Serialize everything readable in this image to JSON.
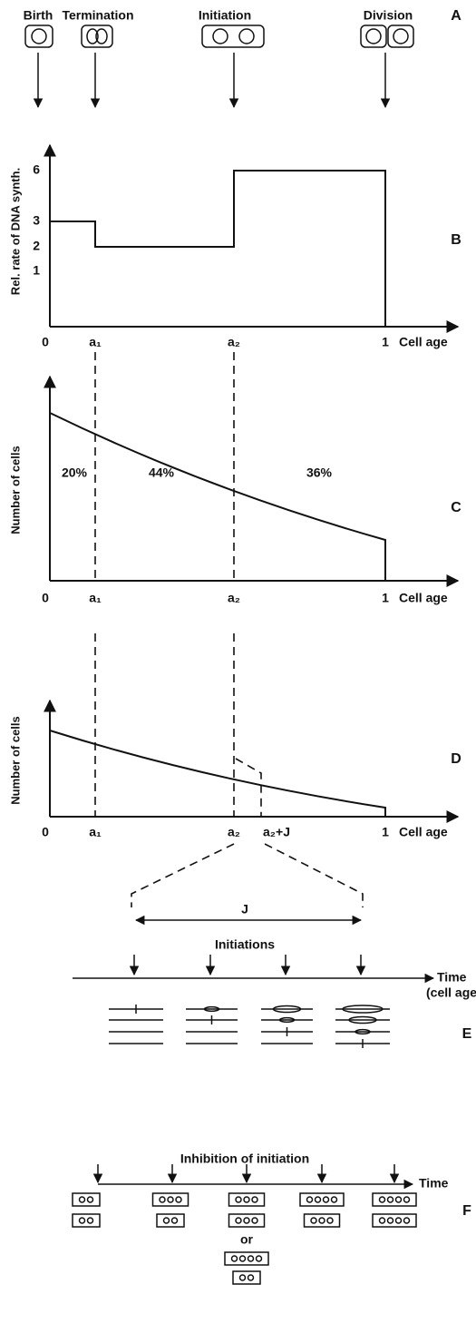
{
  "panel_a": {
    "letter": "A",
    "events": [
      "Birth",
      "Termination",
      "Initiation",
      "Division"
    ]
  },
  "panel_b": {
    "letter": "B",
    "y_label": "Rel. rate of DNA synth.",
    "y_ticks": [
      "1",
      "2",
      "3",
      "6"
    ],
    "x_labels": [
      "0",
      "a₁",
      "a₂",
      "1"
    ],
    "x_title": "Cell age"
  },
  "panel_c": {
    "letter": "C",
    "y_label": "Number of cells",
    "fractions": [
      "20%",
      "44%",
      "36%"
    ],
    "x_labels": [
      "0",
      "a₁",
      "a₂",
      "1"
    ],
    "x_title": "Cell age"
  },
  "panel_d": {
    "letter": "D",
    "y_label": "Number of cells",
    "x_labels": [
      "0",
      "a₁",
      "a₂",
      "a₂+J",
      "1"
    ],
    "x_title": "Cell age"
  },
  "panel_e": {
    "letter": "E",
    "interval": "J",
    "title": "Initiations",
    "axis": "Time",
    "axis_note": "(cell age)"
  },
  "panel_f": {
    "letter": "F",
    "title": "Inhibition of initiation",
    "axis": "Time",
    "alternative": "or"
  }
}
